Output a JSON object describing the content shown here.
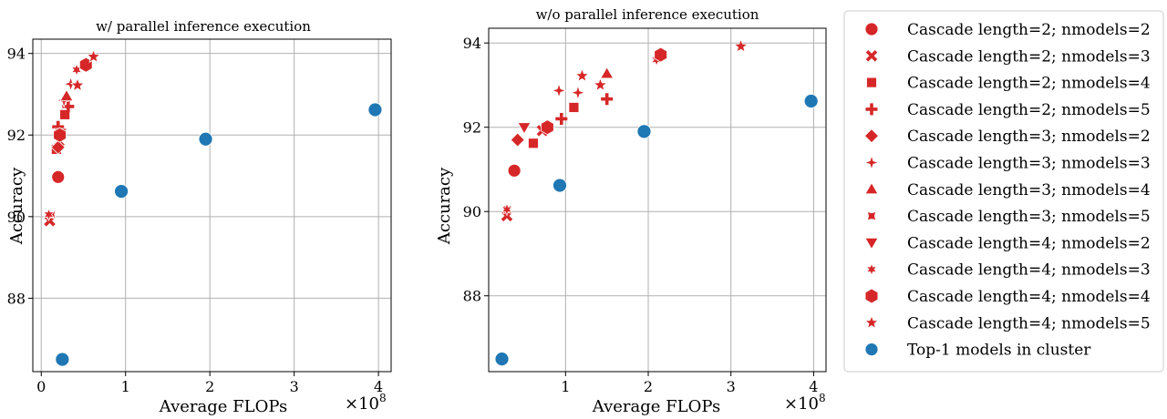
{
  "colors": {
    "cascade": "#d62728",
    "top1": "#1f77b4",
    "grid": "#b0b0b0"
  },
  "legend": [
    {
      "label": "Cascade length=2; nmodels=2",
      "marker": "circle",
      "color": "#d62728"
    },
    {
      "label": "Cascade length=2; nmodels=3",
      "marker": "x",
      "color": "#d62728"
    },
    {
      "label": "Cascade length=2; nmodels=4",
      "marker": "square",
      "color": "#d62728"
    },
    {
      "label": "Cascade length=2; nmodels=5",
      "marker": "plus",
      "color": "#d62728"
    },
    {
      "label": "Cascade length=3; nmodels=2",
      "marker": "diamond",
      "color": "#d62728"
    },
    {
      "label": "Cascade length=3; nmodels=3",
      "marker": "star4",
      "color": "#d62728"
    },
    {
      "label": "Cascade length=3; nmodels=4",
      "marker": "triangle-up",
      "color": "#d62728"
    },
    {
      "label": "Cascade length=3; nmodels=5",
      "marker": "pinched-square",
      "color": "#d62728"
    },
    {
      "label": "Cascade length=4; nmodels=2",
      "marker": "triangle-down",
      "color": "#d62728"
    },
    {
      "label": "Cascade length=4; nmodels=3",
      "marker": "star6",
      "color": "#d62728"
    },
    {
      "label": "Cascade length=4; nmodels=4",
      "marker": "hexagon",
      "color": "#d62728"
    },
    {
      "label": "Cascade length=4; nmodels=5",
      "marker": "star5",
      "color": "#d62728"
    },
    {
      "label": "Top-1 models in cluster",
      "marker": "circle",
      "color": "#1f77b4"
    }
  ],
  "chart_data": [
    {
      "type": "scatter",
      "title": "w/ parallel inference execution",
      "xlabel": "Average FLOPs",
      "ylabel": "Accuracy",
      "x_multiplier": "×10",
      "x_multiplier_exp": "8",
      "x_unit": 100000000,
      "xlim": [
        -0.1,
        4.15
      ],
      "ylim": [
        86.2,
        94.35
      ],
      "xticks": [
        0,
        1,
        2,
        3,
        4
      ],
      "yticks": [
        88,
        90,
        92,
        94
      ],
      "grid": true,
      "series": [
        {
          "name": "Cascade length=2; nmodels=2",
          "marker": "circle",
          "points": [
            [
              0.2,
              90.97
            ]
          ]
        },
        {
          "name": "Cascade length=2; nmodels=3",
          "marker": "x",
          "points": [
            [
              0.1,
              89.9
            ],
            [
              0.21,
              91.85
            ]
          ]
        },
        {
          "name": "Cascade length=2; nmodels=4",
          "marker": "square",
          "points": [
            [
              0.18,
              91.65
            ],
            [
              0.28,
              92.5
            ]
          ]
        },
        {
          "name": "Cascade length=2; nmodels=5",
          "marker": "plus",
          "points": [
            [
              0.2,
              92.2
            ],
            [
              0.32,
              92.7
            ]
          ]
        },
        {
          "name": "Cascade length=3; nmodels=2",
          "marker": "diamond",
          "points": [
            [
              0.2,
              91.7
            ]
          ]
        },
        {
          "name": "Cascade length=3; nmodels=3",
          "marker": "star4",
          "points": [
            [
              0.27,
              92.85
            ],
            [
              0.35,
              93.25
            ]
          ]
        },
        {
          "name": "Cascade length=3; nmodels=4",
          "marker": "triangle-up",
          "points": [
            [
              0.3,
              92.95
            ]
          ]
        },
        {
          "name": "Cascade length=3; nmodels=5",
          "marker": "pinched-square",
          "points": [
            [
              0.12,
              90.05
            ]
          ]
        },
        {
          "name": "Cascade length=4; nmodels=2",
          "marker": "triangle-down",
          "points": [
            [
              0.23,
              92.05
            ]
          ]
        },
        {
          "name": "Cascade length=4; nmodels=3",
          "marker": "star6",
          "points": [
            [
              0.09,
              90.05
            ],
            [
              0.42,
              93.6
            ]
          ]
        },
        {
          "name": "Cascade length=4; nmodels=4",
          "marker": "hexagon",
          "points": [
            [
              0.22,
              92.0
            ],
            [
              0.53,
              93.72
            ]
          ]
        },
        {
          "name": "Cascade length=4; nmodels=5",
          "marker": "star5",
          "points": [
            [
              0.43,
              93.22
            ],
            [
              0.62,
              93.92
            ]
          ]
        },
        {
          "name": "Top-1 models in cluster",
          "marker": "circle",
          "top1": true,
          "points": [
            [
              0.25,
              86.5
            ],
            [
              0.95,
              90.62
            ],
            [
              1.95,
              91.9
            ],
            [
              3.96,
              92.62
            ]
          ]
        }
      ]
    },
    {
      "type": "scatter",
      "title": "w/o parallel inference execution",
      "xlabel": "Average FLOPs",
      "ylabel": "Accuracy",
      "x_multiplier": "×10",
      "x_multiplier_exp": "8",
      "x_unit": 100000000,
      "xlim": [
        0.07,
        4.15
      ],
      "ylim": [
        86.2,
        94.35
      ],
      "xticks": [
        1,
        2,
        3,
        4
      ],
      "yticks": [
        88,
        90,
        92,
        94
      ],
      "grid": true,
      "series": [
        {
          "name": "Cascade length=2; nmodels=2",
          "marker": "circle",
          "points": [
            [
              0.38,
              90.97
            ]
          ]
        },
        {
          "name": "Cascade length=2; nmodels=3",
          "marker": "x",
          "points": [
            [
              0.29,
              89.9
            ],
            [
              0.72,
              91.92
            ]
          ]
        },
        {
          "name": "Cascade length=2; nmodels=4",
          "marker": "square",
          "points": [
            [
              0.61,
              91.62
            ],
            [
              1.1,
              92.47
            ]
          ]
        },
        {
          "name": "Cascade length=2; nmodels=5",
          "marker": "plus",
          "points": [
            [
              0.95,
              92.2
            ],
            [
              1.5,
              92.67
            ]
          ]
        },
        {
          "name": "Cascade length=3; nmodels=2",
          "marker": "diamond",
          "points": [
            [
              0.42,
              91.7
            ]
          ]
        },
        {
          "name": "Cascade length=3; nmodels=3",
          "marker": "star4",
          "points": [
            [
              0.92,
              92.87
            ],
            [
              1.15,
              92.82
            ]
          ]
        },
        {
          "name": "Cascade length=3; nmodels=4",
          "marker": "triangle-up",
          "points": [
            [
              1.5,
              93.27
            ]
          ]
        },
        {
          "name": "Cascade length=3; nmodels=5",
          "marker": "pinched-square",
          "points": [
            [
              0.3,
              90.05
            ]
          ]
        },
        {
          "name": "Cascade length=4; nmodels=2",
          "marker": "triangle-down",
          "points": [
            [
              0.5,
              92.0
            ]
          ]
        },
        {
          "name": "Cascade length=4; nmodels=3",
          "marker": "star6",
          "points": [
            [
              0.29,
              90.05
            ],
            [
              2.1,
              93.6
            ]
          ]
        },
        {
          "name": "Cascade length=4; nmodels=4",
          "marker": "hexagon",
          "points": [
            [
              0.78,
              92.0
            ],
            [
              2.15,
              93.72
            ]
          ]
        },
        {
          "name": "Cascade length=4; nmodels=5",
          "marker": "star5",
          "points": [
            [
              1.2,
              93.22
            ],
            [
              1.42,
              93.0
            ],
            [
              3.12,
              93.92
            ]
          ]
        },
        {
          "name": "Top-1 models in cluster",
          "marker": "circle",
          "top1": true,
          "points": [
            [
              0.23,
              86.5
            ],
            [
              0.93,
              90.62
            ],
            [
              1.95,
              91.9
            ],
            [
              3.97,
              92.62
            ]
          ]
        }
      ]
    }
  ]
}
